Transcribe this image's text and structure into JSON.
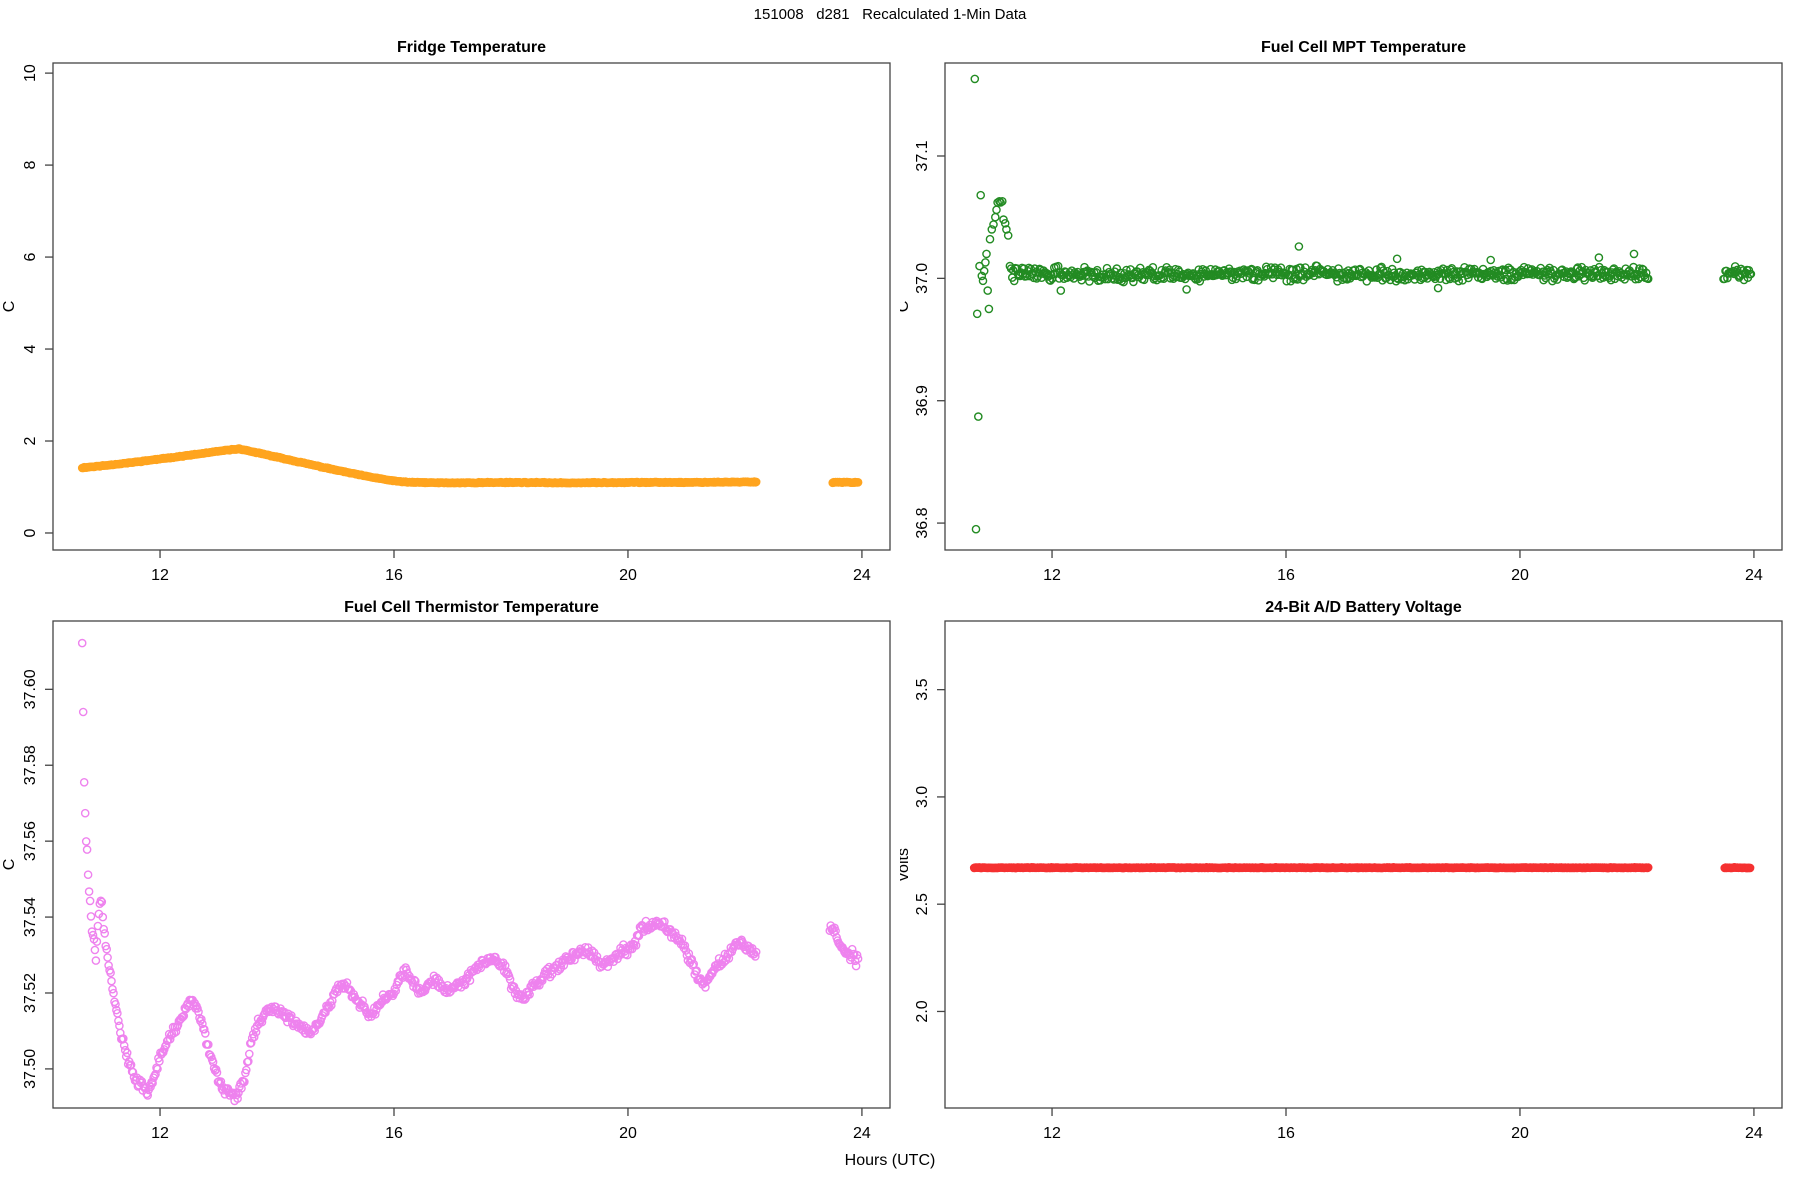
{
  "figure_title": "151008   d281   Recalculated 1-Min Data",
  "xlabel": "Hours (UTC)",
  "chart_data": [
    {
      "type": "scatter",
      "name": "fridge-temperature",
      "title": "Fridge Temperature",
      "ylabel": "C",
      "color": "#FFA41E",
      "xlim": [
        10.17,
        24.48
      ],
      "ylim": [
        -0.37,
        10.22
      ],
      "xticks": [
        12,
        16,
        20,
        24
      ],
      "xtick_labels": [
        "12",
        "16",
        "20",
        "24"
      ],
      "yticks": [
        0,
        2,
        4,
        6,
        8,
        10
      ],
      "ytick_labels": [
        "0",
        "2",
        "4",
        "6",
        "8",
        "10"
      ],
      "grid": false,
      "marker_radius": 3.6,
      "noise": 0.012,
      "step_hours": 0.0167,
      "seed": 11,
      "segments": [
        {
          "from": 10.67,
          "to": 22.2,
          "anchors": [
            [
              10.67,
              1.42
            ],
            [
              11.0,
              1.46
            ],
            [
              11.5,
              1.53
            ],
            [
              12.0,
              1.61
            ],
            [
              12.5,
              1.69
            ],
            [
              12.9,
              1.76
            ],
            [
              13.2,
              1.81
            ],
            [
              13.35,
              1.83
            ],
            [
              13.5,
              1.79
            ],
            [
              14.0,
              1.65
            ],
            [
              14.5,
              1.51
            ],
            [
              15.0,
              1.37
            ],
            [
              15.5,
              1.24
            ],
            [
              16.0,
              1.13
            ],
            [
              16.3,
              1.1
            ],
            [
              17.0,
              1.09
            ],
            [
              18.0,
              1.1
            ],
            [
              19.0,
              1.09
            ],
            [
              20.0,
              1.1
            ],
            [
              21.0,
              1.1
            ],
            [
              22.2,
              1.11
            ]
          ]
        },
        {
          "from": 23.5,
          "to": 23.95,
          "anchors": [
            [
              23.5,
              1.1
            ],
            [
              23.95,
              1.1
            ]
          ]
        }
      ],
      "points": [],
      "outliers": []
    },
    {
      "type": "scatter",
      "name": "fuel-cell-mpt-temperature",
      "title": "Fuel Cell MPT Temperature",
      "ylabel": "C",
      "color": "#228B22",
      "xlim": [
        10.17,
        24.48
      ],
      "ylim": [
        36.778,
        37.176
      ],
      "xticks": [
        12,
        16,
        20,
        24
      ],
      "xtick_labels": [
        "12",
        "16",
        "20",
        "24"
      ],
      "yticks": [
        36.8,
        36.9,
        37.0,
        37.1
      ],
      "ytick_labels": [
        "36.8",
        "36.9",
        "37.0",
        "37.1"
      ],
      "grid": false,
      "marker_radius": 3.6,
      "noise": 0.007,
      "step_hours": 0.0167,
      "seed": 22,
      "segments": [
        {
          "from": 11.32,
          "to": 22.2,
          "anchors": [
            [
              11.32,
              37.004
            ],
            [
              14.0,
              37.003
            ],
            [
              16.0,
              37.004
            ],
            [
              18.0,
              37.003
            ],
            [
              20.0,
              37.004
            ],
            [
              22.2,
              37.004
            ]
          ]
        },
        {
          "from": 23.48,
          "to": 23.95,
          "anchors": [
            [
              23.48,
              37.004
            ],
            [
              23.95,
              37.004
            ]
          ]
        }
      ],
      "points": [
        [
          10.68,
          37.163
        ],
        [
          10.7,
          36.795
        ],
        [
          10.72,
          36.971
        ],
        [
          10.74,
          36.887
        ],
        [
          10.76,
          37.01
        ],
        [
          10.78,
          37.068
        ],
        [
          10.8,
          37.002
        ],
        [
          10.82,
          36.998
        ],
        [
          10.84,
          37.006
        ],
        [
          10.86,
          37.013
        ],
        [
          10.88,
          37.02
        ],
        [
          10.9,
          36.99
        ],
        [
          10.92,
          36.975
        ],
        [
          10.94,
          37.032
        ],
        [
          10.97,
          37.04
        ],
        [
          11.0,
          37.044
        ],
        [
          11.03,
          37.05
        ],
        [
          11.05,
          37.056
        ],
        [
          11.07,
          37.062
        ],
        [
          11.1,
          37.063
        ],
        [
          11.12,
          37.062
        ],
        [
          11.15,
          37.063
        ],
        [
          11.17,
          37.048
        ],
        [
          11.2,
          37.045
        ],
        [
          11.22,
          37.04
        ],
        [
          11.25,
          37.035
        ],
        [
          11.28,
          37.01
        ],
        [
          11.3,
          37.008
        ]
      ],
      "outliers": [
        [
          16.22,
          37.026
        ],
        [
          17.9,
          37.016
        ],
        [
          21.35,
          37.017
        ],
        [
          21.95,
          37.02
        ],
        [
          12.15,
          36.99
        ],
        [
          14.3,
          36.991
        ],
        [
          18.6,
          36.992
        ],
        [
          19.5,
          37.015
        ]
      ]
    },
    {
      "type": "scatter",
      "name": "fuel-cell-thermistor-temperature",
      "title": "Fuel Cell Thermistor Temperature",
      "ylabel": "C",
      "color": "#EE82EE",
      "xlim": [
        10.17,
        24.48
      ],
      "ylim": [
        37.4897,
        37.618
      ],
      "xticks": [
        12,
        16,
        20,
        24
      ],
      "xtick_labels": [
        "12",
        "16",
        "20",
        "24"
      ],
      "yticks": [
        37.5,
        37.52,
        37.54,
        37.56,
        37.58,
        37.6
      ],
      "ytick_labels": [
        "37.50",
        "37.52",
        "37.54",
        "37.56",
        "37.58",
        "37.60"
      ],
      "grid": false,
      "marker_radius": 3.6,
      "noise": 0.0017,
      "step_hours": 0.0167,
      "seed": 33,
      "segments": [
        {
          "from": 10.67,
          "to": 22.2,
          "anchors": [
            [
              10.67,
              37.613
            ],
            [
              10.7,
              37.578
            ],
            [
              10.73,
              37.561
            ],
            [
              10.75,
              37.559
            ],
            [
              10.78,
              37.547
            ],
            [
              10.8,
              37.544
            ],
            [
              10.83,
              37.538
            ],
            [
              10.87,
              37.533
            ],
            [
              10.9,
              37.528
            ],
            [
              10.95,
              37.542
            ],
            [
              11.0,
              37.545
            ],
            [
              11.05,
              37.536
            ],
            [
              11.1,
              37.53
            ],
            [
              11.15,
              37.526
            ],
            [
              11.2,
              37.52
            ],
            [
              11.3,
              37.512
            ],
            [
              11.4,
              37.505
            ],
            [
              11.5,
              37.5
            ],
            [
              11.6,
              37.497
            ],
            [
              11.7,
              37.4955
            ],
            [
              11.8,
              37.494
            ],
            [
              11.9,
              37.4975
            ],
            [
              12.0,
              37.5035
            ],
            [
              12.1,
              37.5065
            ],
            [
              12.2,
              37.5095
            ],
            [
              12.3,
              37.511
            ],
            [
              12.4,
              37.5145
            ],
            [
              12.5,
              37.5175
            ],
            [
              12.55,
              37.5185
            ],
            [
              12.6,
              37.5165
            ],
            [
              12.7,
              37.5135
            ],
            [
              12.8,
              37.5075
            ],
            [
              12.9,
              37.502
            ],
            [
              13.0,
              37.4975
            ],
            [
              13.1,
              37.4945
            ],
            [
              13.2,
              37.4935
            ],
            [
              13.3,
              37.4925
            ],
            [
              13.45,
              37.4975
            ],
            [
              13.55,
              37.5065
            ],
            [
              13.65,
              37.511
            ],
            [
              13.75,
              37.5135
            ],
            [
              13.85,
              37.5155
            ],
            [
              13.95,
              37.5155
            ],
            [
              14.1,
              37.5145
            ],
            [
              14.25,
              37.5125
            ],
            [
              14.4,
              37.5105
            ],
            [
              14.55,
              37.5095
            ],
            [
              14.7,
              37.5115
            ],
            [
              14.85,
              37.516
            ],
            [
              15.0,
              37.5205
            ],
            [
              15.1,
              37.522
            ],
            [
              15.2,
              37.5215
            ],
            [
              15.35,
              37.518
            ],
            [
              15.5,
              37.5165
            ],
            [
              15.6,
              37.514
            ],
            [
              15.7,
              37.516
            ],
            [
              15.8,
              37.518
            ],
            [
              15.9,
              37.5185
            ],
            [
              16.0,
              37.52
            ],
            [
              16.1,
              37.5245
            ],
            [
              16.2,
              37.526
            ],
            [
              16.3,
              37.5235
            ],
            [
              16.4,
              37.521
            ],
            [
              16.5,
              37.52
            ],
            [
              16.6,
              37.5225
            ],
            [
              16.7,
              37.5235
            ],
            [
              16.8,
              37.522
            ],
            [
              16.9,
              37.5205
            ],
            [
              17.0,
              37.5215
            ],
            [
              17.15,
              37.5225
            ],
            [
              17.3,
              37.5245
            ],
            [
              17.45,
              37.527
            ],
            [
              17.6,
              37.529
            ],
            [
              17.75,
              37.5285
            ],
            [
              17.9,
              37.526
            ],
            [
              18.0,
              37.5225
            ],
            [
              18.1,
              37.52
            ],
            [
              18.2,
              37.5185
            ],
            [
              18.35,
              37.521
            ],
            [
              18.5,
              37.5235
            ],
            [
              18.65,
              37.5255
            ],
            [
              18.8,
              37.5265
            ],
            [
              18.95,
              37.5285
            ],
            [
              19.1,
              37.53
            ],
            [
              19.25,
              37.5315
            ],
            [
              19.4,
              37.53
            ],
            [
              19.55,
              37.528
            ],
            [
              19.7,
              37.5285
            ],
            [
              19.85,
              37.531
            ],
            [
              20.0,
              37.5315
            ],
            [
              20.1,
              37.533
            ],
            [
              20.2,
              37.536
            ],
            [
              20.3,
              37.5375
            ],
            [
              20.45,
              37.538
            ],
            [
              20.6,
              37.5385
            ],
            [
              20.7,
              37.5365
            ],
            [
              20.8,
              37.535
            ],
            [
              20.9,
              37.5335
            ],
            [
              21.0,
              37.531
            ],
            [
              21.1,
              37.527
            ],
            [
              21.2,
              37.5245
            ],
            [
              21.3,
              37.5225
            ],
            [
              21.4,
              37.524
            ],
            [
              21.5,
              37.527
            ],
            [
              21.6,
              37.5285
            ],
            [
              21.7,
              37.53
            ],
            [
              21.8,
              37.532
            ],
            [
              21.9,
              37.5335
            ],
            [
              22.0,
              37.5325
            ],
            [
              22.1,
              37.531
            ],
            [
              22.2,
              37.5295
            ]
          ]
        },
        {
          "from": 23.45,
          "to": 23.95,
          "anchors": [
            [
              23.45,
              37.5375
            ],
            [
              23.55,
              37.536
            ],
            [
              23.6,
              37.533
            ],
            [
              23.7,
              37.531
            ],
            [
              23.8,
              37.5295
            ],
            [
              23.85,
              37.531
            ],
            [
              23.9,
              37.5285
            ],
            [
              23.95,
              37.529
            ]
          ]
        }
      ],
      "points": [],
      "outliers": []
    },
    {
      "type": "scatter",
      "name": "battery-voltage",
      "title": "24-Bit A/D Battery Voltage",
      "ylabel": "volts",
      "color": "#F53131",
      "xlim": [
        10.17,
        24.48
      ],
      "ylim": [
        1.55,
        3.82
      ],
      "xticks": [
        12,
        16,
        20,
        24
      ],
      "xtick_labels": [
        "12",
        "16",
        "20",
        "24"
      ],
      "yticks": [
        2.0,
        2.5,
        3.0,
        3.5
      ],
      "ytick_labels": [
        "2.0",
        "2.5",
        "3.0",
        "3.5"
      ],
      "grid": false,
      "marker_radius": 3.6,
      "noise": 0.002,
      "step_hours": 0.0167,
      "seed": 44,
      "segments": [
        {
          "from": 10.67,
          "to": 22.2,
          "anchors": [
            [
              10.67,
              2.67
            ],
            [
              22.2,
              2.67
            ]
          ]
        },
        {
          "from": 23.5,
          "to": 23.95,
          "anchors": [
            [
              23.5,
              2.67
            ],
            [
              23.95,
              2.67
            ]
          ]
        }
      ],
      "points": [],
      "outliers": []
    }
  ]
}
